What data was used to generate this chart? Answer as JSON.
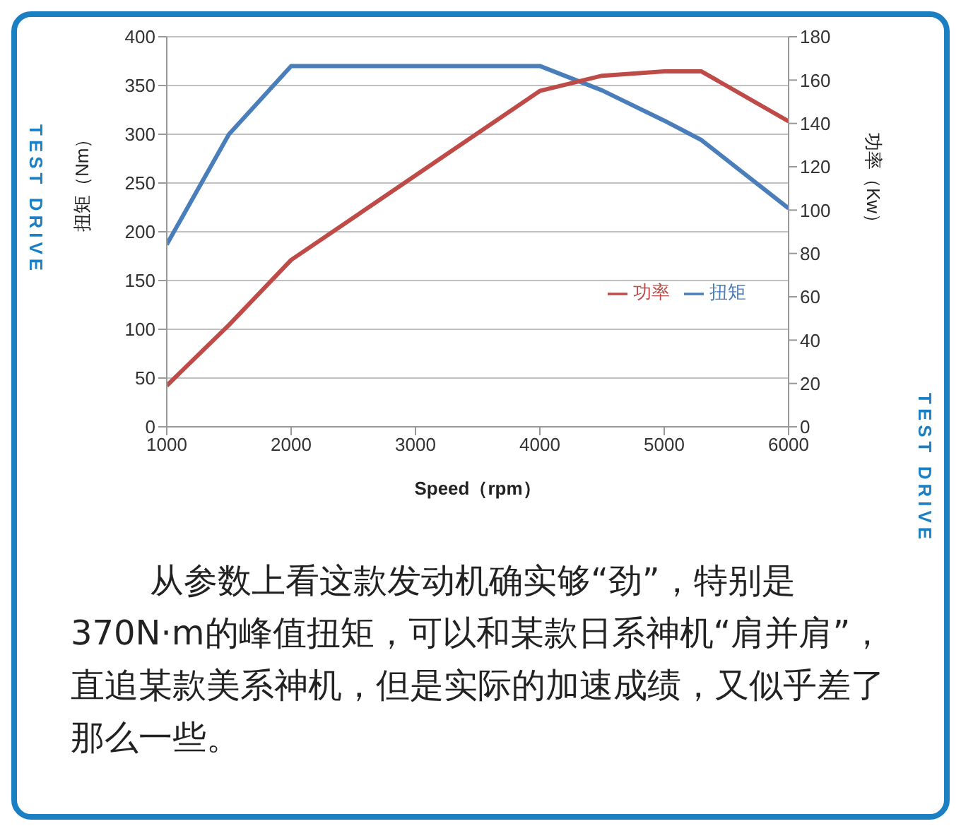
{
  "chart_data": {
    "type": "line",
    "xlabel": "Speed（rpm）",
    "ylabel": "扭矩（Nm）",
    "y2label": "功率（Kw）",
    "x": [
      1000,
      1500,
      2000,
      3000,
      4000,
      4500,
      5000,
      5300,
      6000
    ],
    "series": [
      {
        "name": "扭矩",
        "color": "#4a7ebb",
        "values": [
          187,
          300,
          370,
          370,
          370,
          345,
          314,
          294,
          224
        ]
      },
      {
        "name": "功率",
        "color": "#be4b48",
        "axis": "y2",
        "values": [
          19,
          47,
          77,
          116,
          155,
          162,
          164,
          164,
          141
        ]
      }
    ],
    "xlim": [
      1000,
      6000
    ],
    "xticks": [
      1000,
      2000,
      3000,
      4000,
      5000,
      6000
    ],
    "ylim": [
      0,
      400
    ],
    "yticks": [
      0,
      50,
      100,
      150,
      200,
      250,
      300,
      350,
      400
    ],
    "y2lim": [
      0,
      180
    ],
    "y2ticks": [
      0,
      20,
      40,
      60,
      80,
      100,
      120,
      140,
      160,
      180
    ],
    "grid": "y",
    "legend": "right",
    "marker": "none",
    "line_style": "solid",
    "annotations": [
      "TEST DRIVE",
      "TEST DRIVE",
      "从参数上看这款发动机确实够“劲”，特别是370N·m的峰值扭矩，可以和某款日系神机“肩并肩”，直追某款美系神机，但是实际的加速成绩，又似乎差了那么一些。"
    ]
  }
}
